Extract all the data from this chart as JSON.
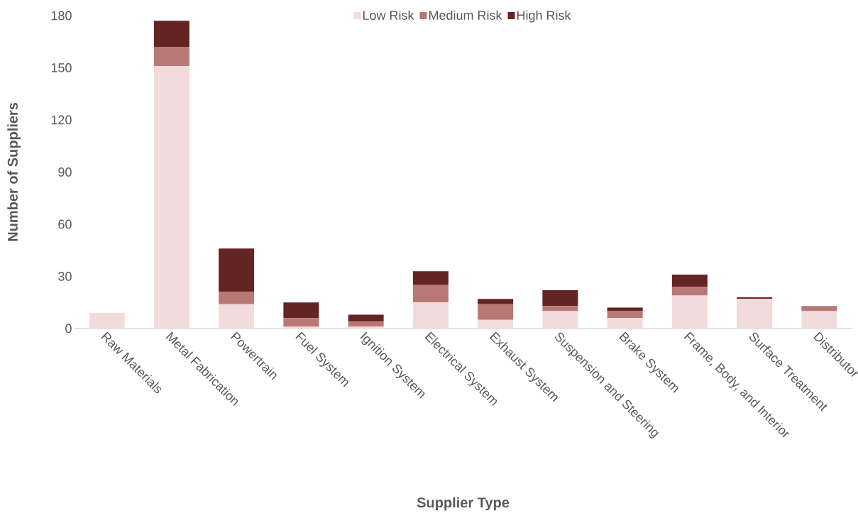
{
  "chart_data": {
    "type": "bar",
    "stacked": true,
    "xlabel": "Supplier Type",
    "ylabel": "Number of Suppliers",
    "categories": [
      "Raw Materials",
      "Metal Fabrication",
      "Powertrain",
      "Fuel System",
      "Ignition System",
      "Electrical System",
      "Exhaust System",
      "Suspension and Steering",
      "Brake System",
      "Frame, Body, and Interior",
      "Surface Treatment",
      "Distributor"
    ],
    "series": [
      {
        "name": "Low Risk",
        "color": "#f2dcdb",
        "values": [
          9,
          151,
          14,
          1,
          1,
          15,
          5,
          10,
          6,
          19,
          17,
          10
        ]
      },
      {
        "name": "Medium Risk",
        "color": "#b87876",
        "values": [
          0,
          11,
          7,
          5,
          3,
          10,
          9,
          3,
          4,
          5,
          0,
          3
        ]
      },
      {
        "name": "High Risk",
        "color": "#632523",
        "values": [
          0,
          15,
          25,
          9,
          4,
          8,
          3,
          9,
          2,
          7,
          1,
          0
        ]
      }
    ],
    "ylim": [
      0,
      180
    ],
    "yticks": [
      0,
      30,
      60,
      90,
      120,
      150,
      180
    ],
    "grid": false,
    "legend": "top"
  }
}
